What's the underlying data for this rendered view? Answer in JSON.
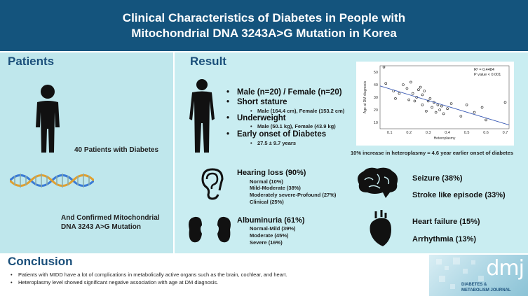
{
  "header": {
    "title_line1": "Clinical Characteristics of Diabetes in People with",
    "title_line2": "Mitochondrial DNA 3243A>G Mutation in Korea"
  },
  "patients": {
    "section_title": "Patients",
    "count_text": "40 Patients with Diabetes",
    "mutation_line1": "And Confirmed Mitochondrial",
    "mutation_line2": "DNA 3243 A>G Mutation"
  },
  "result": {
    "section_title": "Result",
    "items": [
      {
        "label": "Male (n=20) / Female (n=20)",
        "subs": []
      },
      {
        "label": "Short stature",
        "subs": [
          "Male (164.4 cm), Female (153.2 cm)"
        ]
      },
      {
        "label": "Underweight",
        "subs": [
          "Male (50.1 kg), Female (43.9 kg)"
        ]
      },
      {
        "label": "Early onset of Diabetes",
        "subs": [
          "27.5 ± 9.7 years"
        ]
      }
    ],
    "hearing": {
      "title": "Hearing loss (90%)",
      "items": [
        "Normal (10%)",
        "Mild-Moderate (38%)",
        "Moderately severe-Profound (27%)",
        "Clinical (25%)"
      ]
    },
    "albuminuria": {
      "title": "Albuminuria (61%)",
      "items": [
        "Normal-Mild (39%)",
        "Moderate (45%)",
        "Severe (16%)"
      ]
    },
    "conditions": [
      "Seizure (38%)",
      "Stroke like episode (33%)",
      "Heart failure (15%)",
      "Arrhythmia (13%)"
    ],
    "chart_caption": "10% increase in heteroplasmy = 4.6 year earlier onset of diabetes"
  },
  "chart_data": {
    "type": "scatter",
    "xlabel": "Heteroplasmy",
    "ylabel": "Age at DM diagnosis",
    "xlim": [
      0.05,
      0.72
    ],
    "ylim": [
      5,
      55
    ],
    "xticks": [
      "0.1",
      "0.2",
      "0.3",
      "0.4",
      "0.5",
      "0.6",
      "0.7"
    ],
    "yticks": [
      "10",
      "20",
      "30",
      "40",
      "50"
    ],
    "annotation_r2": "R² = 0.4484",
    "annotation_p": "P value < 0.001",
    "points": [
      [
        0.07,
        54
      ],
      [
        0.08,
        41
      ],
      [
        0.12,
        35
      ],
      [
        0.13,
        29
      ],
      [
        0.15,
        33
      ],
      [
        0.17,
        40
      ],
      [
        0.19,
        37
      ],
      [
        0.2,
        28
      ],
      [
        0.21,
        42
      ],
      [
        0.22,
        33
      ],
      [
        0.23,
        27
      ],
      [
        0.24,
        30
      ],
      [
        0.25,
        36
      ],
      [
        0.26,
        38
      ],
      [
        0.27,
        24
      ],
      [
        0.27,
        32
      ],
      [
        0.28,
        35
      ],
      [
        0.29,
        19
      ],
      [
        0.3,
        27
      ],
      [
        0.31,
        29
      ],
      [
        0.32,
        22
      ],
      [
        0.33,
        26
      ],
      [
        0.34,
        18
      ],
      [
        0.35,
        24
      ],
      [
        0.36,
        20
      ],
      [
        0.37,
        23
      ],
      [
        0.38,
        17
      ],
      [
        0.4,
        21
      ],
      [
        0.42,
        25
      ],
      [
        0.47,
        15
      ],
      [
        0.5,
        24
      ],
      [
        0.54,
        18
      ],
      [
        0.58,
        22
      ],
      [
        0.6,
        12
      ],
      [
        0.7,
        26
      ]
    ],
    "trendline": [
      [
        0.05,
        39
      ],
      [
        0.72,
        8
      ]
    ]
  },
  "conclusion": {
    "title": "Conclusion",
    "items": [
      "Patients with MIDD have a lot of complications in metabolically active organs such as the brain, cochlear, and heart.",
      "Heteroplasmy level showed significant negative association with age at DM diagnosis."
    ]
  },
  "logo": {
    "mark": "dmj",
    "line1": "DIABETES &",
    "line2": "METABOLISM JOURNAL"
  }
}
